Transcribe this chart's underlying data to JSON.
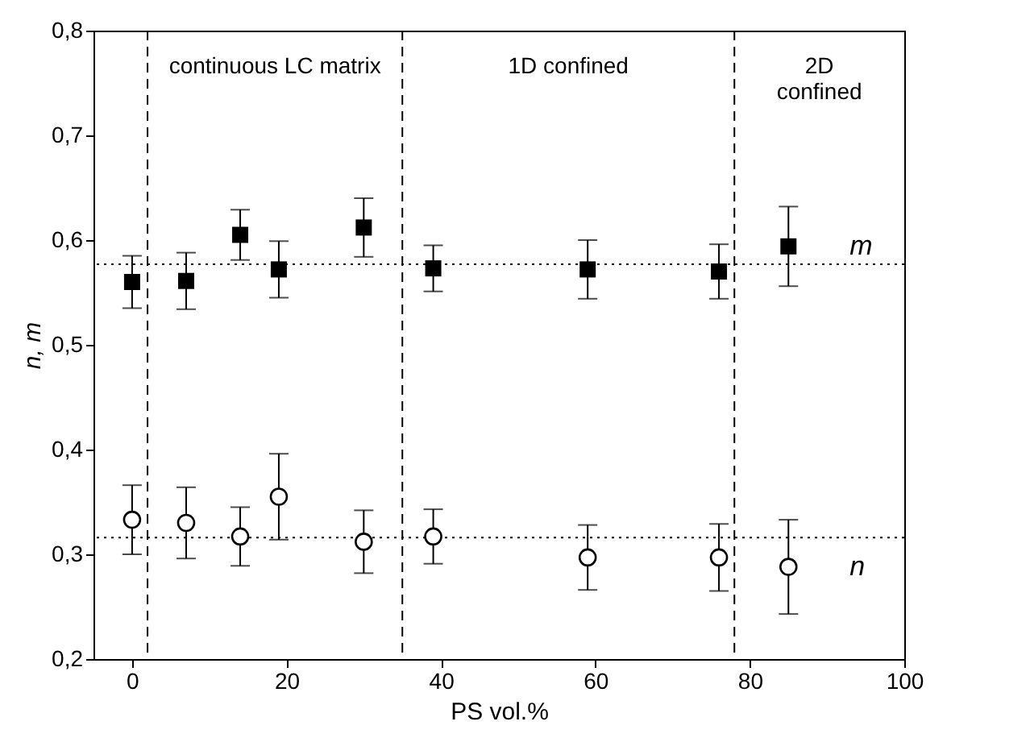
{
  "chart_data": {
    "type": "scatter",
    "xlabel": "PS vol.%",
    "ylabel": "n, m",
    "xlim": [
      -5,
      100
    ],
    "ylim": [
      0.2,
      0.8
    ],
    "xticks": [
      0,
      20,
      40,
      60,
      80,
      100
    ],
    "yticks": [
      {
        "value": 0.2,
        "label": "0,2"
      },
      {
        "value": 0.3,
        "label": "0,3"
      },
      {
        "value": 0.4,
        "label": "0,4"
      },
      {
        "value": 0.5,
        "label": "0,5"
      },
      {
        "value": 0.6,
        "label": "0,6"
      },
      {
        "value": 0.7,
        "label": "0,7"
      },
      {
        "value": 0.8,
        "label": "0,8"
      }
    ],
    "x": [
      0,
      7,
      14,
      19,
      30,
      39,
      59,
      76,
      85
    ],
    "series": [
      {
        "name": "m",
        "color": "#000000",
        "marker": "square",
        "values": [
          0.56,
          0.561,
          0.605,
          0.572,
          0.612,
          0.573,
          0.572,
          0.57,
          0.594
        ],
        "errors": [
          0.025,
          0.027,
          0.024,
          0.027,
          0.028,
          0.022,
          0.028,
          0.026,
          0.038
        ]
      },
      {
        "name": "n",
        "color": "#000000",
        "marker": "circle",
        "values": [
          0.333,
          0.33,
          0.317,
          0.355,
          0.312,
          0.317,
          0.297,
          0.297,
          0.288
        ],
        "errors": [
          0.033,
          0.034,
          0.028,
          0.041,
          0.03,
          0.026,
          0.031,
          0.032,
          0.045
        ]
      }
    ],
    "ref_lines": [
      {
        "axis": "y",
        "value": 0.577,
        "line_style": "dotted"
      },
      {
        "axis": "y",
        "value": 0.316,
        "line_style": "dotted"
      },
      {
        "axis": "x",
        "value": 2,
        "line_style": "dashed"
      },
      {
        "axis": "x",
        "value": 35,
        "line_style": "dashed"
      },
      {
        "axis": "x",
        "value": 78,
        "line_style": "dashed"
      }
    ],
    "annotations": [
      "continuous LC matrix",
      "1D confined",
      "2D\nconfined"
    ],
    "grid": false
  }
}
